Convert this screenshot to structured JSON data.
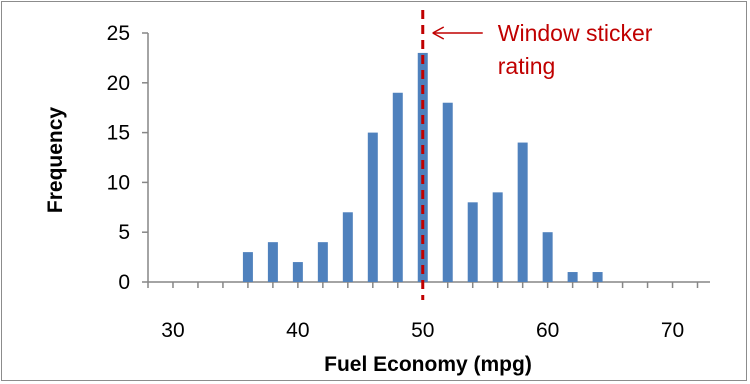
{
  "chart_data": {
    "type": "bar",
    "title": "",
    "xlabel": "Fuel Economy (mpg)",
    "ylabel": "Frequency",
    "xlim": [
      28,
      73
    ],
    "ylim": [
      0,
      25
    ],
    "x_ticks": [
      30,
      40,
      50,
      60,
      70
    ],
    "y_ticks": [
      0,
      5,
      10,
      15,
      20,
      25
    ],
    "x_minor_tick_step": 2,
    "grid": false,
    "bar_color": "#4f81bd",
    "x": [
      36,
      38,
      40,
      42,
      44,
      46,
      48,
      50,
      52,
      54,
      56,
      58,
      60,
      62,
      64
    ],
    "values": [
      3,
      4,
      2,
      4,
      7,
      15,
      19,
      23,
      18,
      8,
      9,
      14,
      5,
      1,
      1
    ],
    "reference_line": {
      "x": 50,
      "color": "#c00000",
      "style": "dashed",
      "label_lines": [
        "Window sticker",
        "rating"
      ]
    }
  }
}
